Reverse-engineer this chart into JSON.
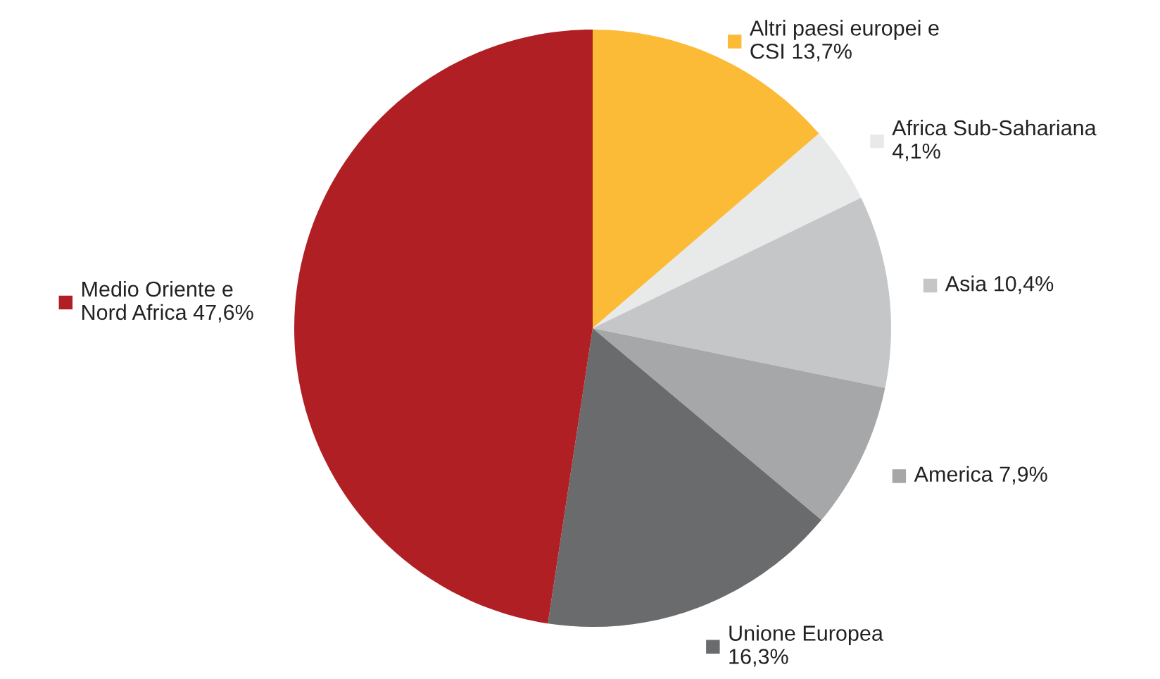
{
  "chart_data": {
    "type": "pie",
    "categories": [
      "Altri paesi europei e\nCSI",
      "Africa Sub-Sahariana",
      "Asia",
      "America",
      "Unione Europea",
      "Medio Oriente e\nNord Africa"
    ],
    "values": [
      13.7,
      4.1,
      10.4,
      7.9,
      16.3,
      47.6
    ],
    "value_labels": [
      "13,7%",
      "4,1%",
      "10,4%",
      "7,9%",
      "16,3%",
      "47,6%"
    ],
    "legend": "right",
    "colors": [
      "#fbbb37",
      "#e8e9e9",
      "#c5c6c8",
      "#a6a7a9",
      "#6a6b6d",
      "#b01f24"
    ]
  }
}
